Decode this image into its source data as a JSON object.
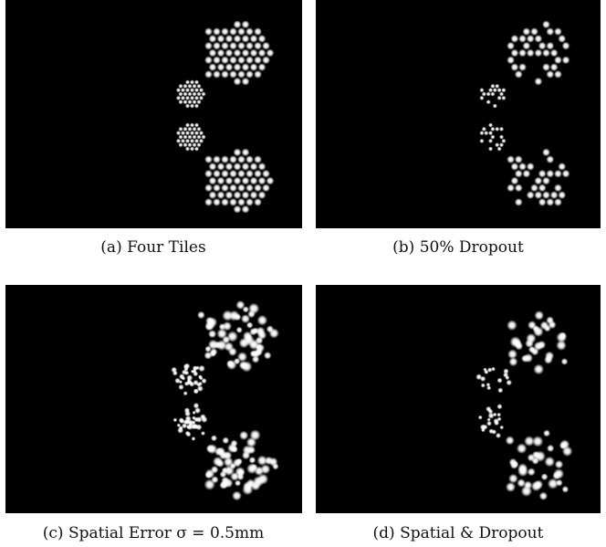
{
  "panels": [
    {
      "caption": "(a) Four Tiles"
    },
    {
      "caption": "(b) 50% Dropout"
    },
    {
      "caption": "(c) Spatial Error σ = 0.5mm"
    },
    {
      "caption": "(d) Spatial & Dropout"
    }
  ]
}
